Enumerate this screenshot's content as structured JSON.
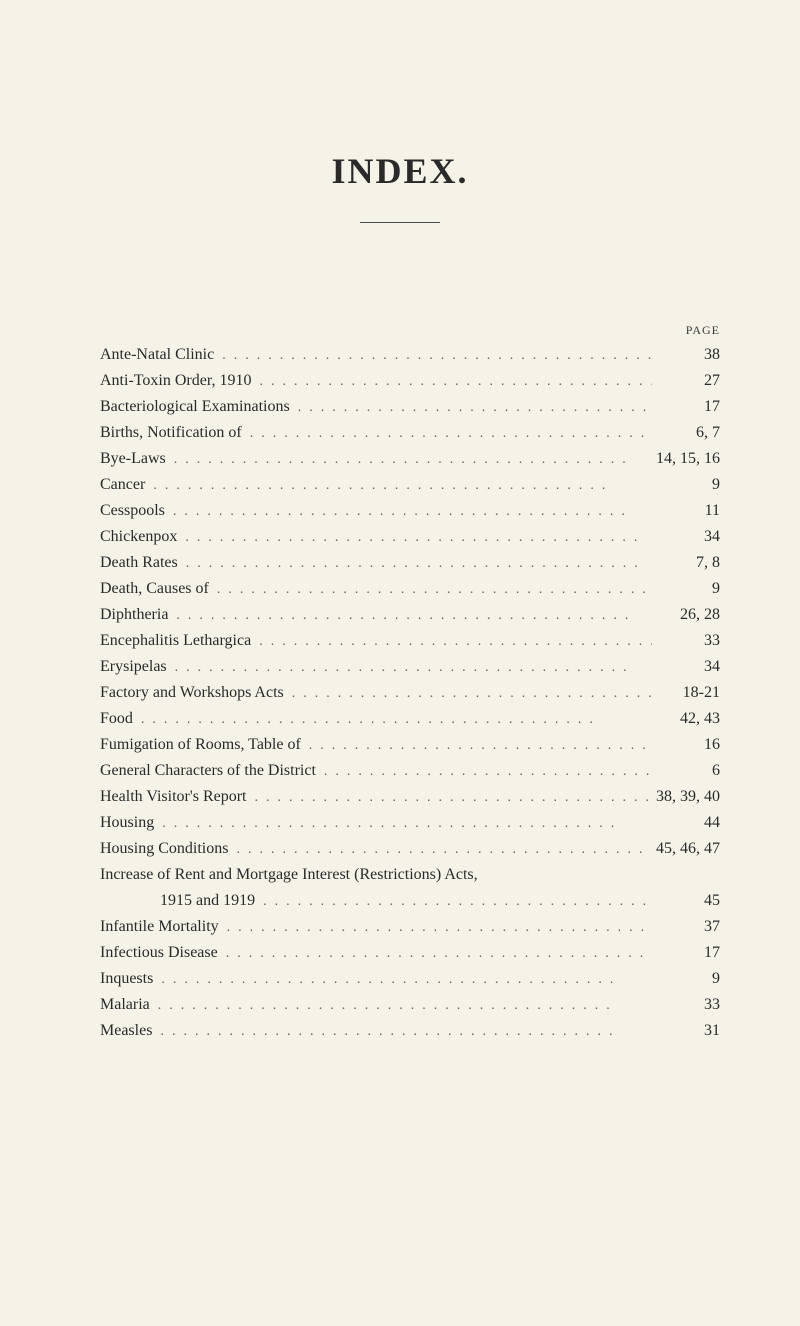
{
  "title": "INDEX.",
  "page_header": "PAGE",
  "background_color": "#f5f2e8",
  "text_color": "#2a2a2a",
  "title_fontsize": 36,
  "entry_fontsize": 16,
  "dots_char": "...",
  "entries": [
    {
      "title": "Ante-Natal Clinic",
      "page": "38",
      "indented": false
    },
    {
      "title": "Anti-Toxin Order, 1910",
      "page": "27",
      "indented": false
    },
    {
      "title": "Bacteriological Examinations",
      "page": "17",
      "indented": false
    },
    {
      "title": "Births, Notification of",
      "page": "6, 7",
      "indented": false
    },
    {
      "title": "Bye-Laws",
      "page": "14, 15, 16",
      "indented": false
    },
    {
      "title": "Cancer",
      "page": "9",
      "indented": false
    },
    {
      "title": "Cesspools",
      "page": "11",
      "indented": false
    },
    {
      "title": "Chickenpox",
      "page": "34",
      "indented": false
    },
    {
      "title": "Death Rates",
      "page": "7, 8",
      "indented": false
    },
    {
      "title": "Death, Causes of",
      "page": "9",
      "indented": false
    },
    {
      "title": "Diphtheria",
      "page": "26, 28",
      "indented": false
    },
    {
      "title": "Encephalitis Lethargica",
      "page": "33",
      "indented": false
    },
    {
      "title": "Erysipelas",
      "page": "34",
      "indented": false
    },
    {
      "title": "Factory and Workshops Acts",
      "page": "18-21",
      "indented": false
    },
    {
      "title": "Food",
      "page": "42, 43",
      "indented": false
    },
    {
      "title": "Fumigation of Rooms, Table of",
      "page": "16",
      "indented": false
    },
    {
      "title": "General Characters of the District",
      "page": "6",
      "indented": false
    },
    {
      "title": "Health Visitor's Report",
      "page": "38, 39, 40",
      "indented": false
    },
    {
      "title": "Housing",
      "page": "44",
      "indented": false
    },
    {
      "title": "Housing Conditions",
      "page": "45, 46, 47",
      "indented": false
    },
    {
      "title": "Increase of Rent and Mortgage Interest (Restrictions) Acts,",
      "page": "",
      "indented": false,
      "no_dots": true
    },
    {
      "title": "1915 and 1919",
      "page": "45",
      "indented": true
    },
    {
      "title": "Infantile Mortality",
      "page": "37",
      "indented": false
    },
    {
      "title": "Infectious Disease",
      "page": "17",
      "indented": false
    },
    {
      "title": "Inquests",
      "page": "9",
      "indented": false
    },
    {
      "title": "Malaria",
      "page": "33",
      "indented": false
    },
    {
      "title": "Measles",
      "page": "31",
      "indented": false
    }
  ]
}
